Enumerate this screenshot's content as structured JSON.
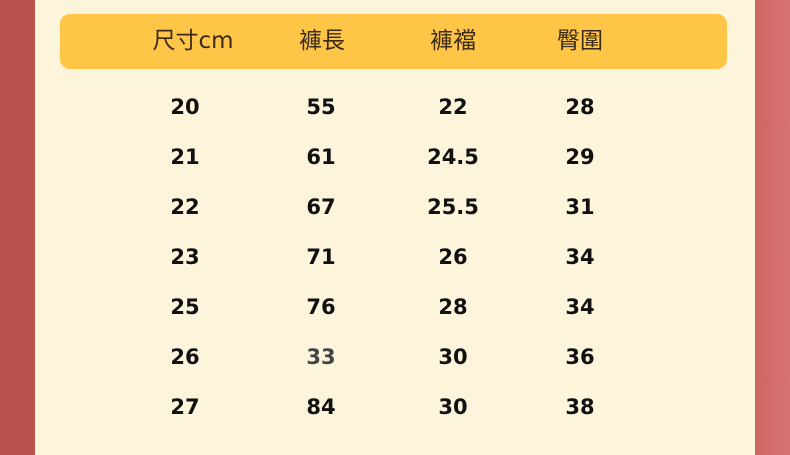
{
  "colors": {
    "header_bg": "#fec546",
    "card_bg": "#fdf4dc",
    "border": "#b9514c"
  },
  "headers": [
    "尺寸cm",
    "褲長",
    "褲襠",
    "臀圍"
  ],
  "rows": [
    [
      "20",
      "55",
      "22",
      "28"
    ],
    [
      "21",
      "61",
      "24.5",
      "29"
    ],
    [
      "22",
      "67",
      "25.5",
      "31"
    ],
    [
      "23",
      "71",
      "26",
      "34"
    ],
    [
      "25",
      "76",
      "28",
      "34"
    ],
    [
      "26",
      "33",
      "30",
      "36"
    ],
    [
      "27",
      "84",
      "30",
      "38"
    ]
  ]
}
